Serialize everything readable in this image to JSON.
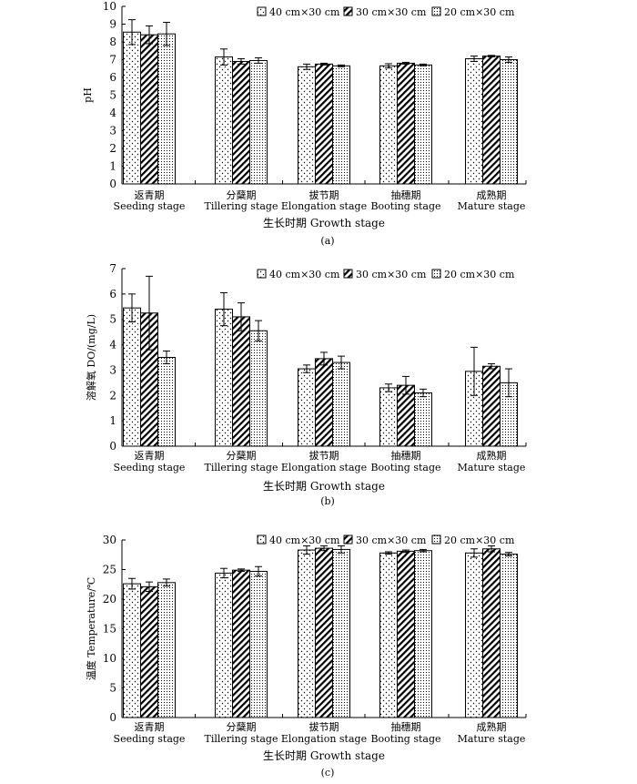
{
  "legend": [
    "40 cm×30 cm",
    "30 cm×30 cm",
    "20 cm×30 cm"
  ],
  "categories": [
    {
      "cn": "返青期",
      "en": "Seeding stage"
    },
    {
      "cn": "分蘖期",
      "en": "Tillering stage"
    },
    {
      "cn": "拔节期",
      "en": "Elongation stage"
    },
    {
      "cn": "抽穗期",
      "en": "Booting stage"
    },
    {
      "cn": "成熟期",
      "en": "Mature stage"
    }
  ],
  "xlabel": "生长时期 Growth stage",
  "chart_data": [
    {
      "type": "bar",
      "panel_label": "(a)",
      "ylabel": "pH",
      "ylim": [
        0,
        10
      ],
      "yticks": [
        0,
        1,
        2,
        3,
        4,
        5,
        6,
        7,
        8,
        9,
        10
      ],
      "series": [
        {
          "name": "40 cm×30 cm",
          "values": [
            8.55,
            7.15,
            6.6,
            6.65,
            7.05
          ],
          "errors": [
            0.7,
            0.45,
            0.15,
            0.12,
            0.15
          ]
        },
        {
          "name": "30 cm×30 cm",
          "values": [
            8.4,
            6.9,
            6.75,
            6.8,
            7.2
          ],
          "errors": [
            0.5,
            0.15,
            0.05,
            0.05,
            0.04
          ]
        },
        {
          "name": "20 cm×30 cm",
          "values": [
            8.45,
            6.95,
            6.65,
            6.7,
            7.0
          ],
          "errors": [
            0.65,
            0.15,
            0.05,
            0.05,
            0.15
          ]
        }
      ]
    },
    {
      "type": "bar",
      "panel_label": "(b)",
      "ylabel": "溶解氧 DO/(mg/L)",
      "ylim": [
        0,
        7
      ],
      "yticks": [
        0,
        1,
        2,
        3,
        4,
        5,
        6,
        7
      ],
      "series": [
        {
          "name": "40 cm×30 cm",
          "values": [
            5.45,
            5.4,
            3.05,
            2.3,
            2.95
          ],
          "errors": [
            0.55,
            0.65,
            0.15,
            0.15,
            0.95
          ]
        },
        {
          "name": "30 cm×30 cm",
          "values": [
            5.25,
            5.1,
            3.45,
            2.4,
            3.15
          ],
          "errors": [
            1.45,
            0.55,
            0.25,
            0.35,
            0.1
          ]
        },
        {
          "name": "20 cm×30 cm",
          "values": [
            3.5,
            4.55,
            3.3,
            2.1,
            2.5
          ],
          "errors": [
            0.25,
            0.4,
            0.25,
            0.15,
            0.55
          ]
        }
      ]
    },
    {
      "type": "bar",
      "panel_label": "(c)",
      "ylabel": "温度 Temperature/℃",
      "ylim": [
        0,
        30
      ],
      "yticks": [
        0,
        5,
        10,
        15,
        20,
        25,
        30
      ],
      "series": [
        {
          "name": "40 cm×30 cm",
          "values": [
            22.6,
            24.4,
            28.3,
            27.8,
            27.8
          ],
          "errors": [
            0.9,
            0.8,
            0.7,
            0.2,
            0.7
          ]
        },
        {
          "name": "30 cm×30 cm",
          "values": [
            22.1,
            24.9,
            28.6,
            28.1,
            28.5
          ],
          "errors": [
            0.8,
            0.2,
            0.4,
            0.2,
            0.5
          ]
        },
        {
          "name": "20 cm×30 cm",
          "values": [
            22.8,
            24.7,
            28.4,
            28.2,
            27.6
          ],
          "errors": [
            0.6,
            0.8,
            0.6,
            0.2,
            0.3
          ]
        }
      ]
    }
  ]
}
